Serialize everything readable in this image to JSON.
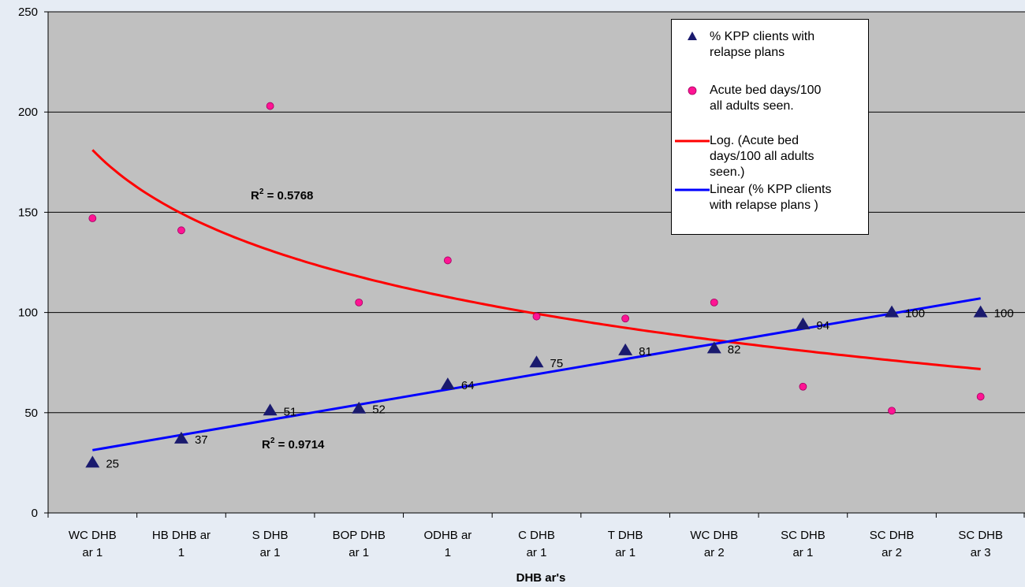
{
  "chart_data": {
    "type": "scatter",
    "title": "",
    "xlabel": "DHB ar's",
    "ylabel": "",
    "ylim": [
      0,
      250
    ],
    "yticks": [
      0,
      50,
      100,
      150,
      200,
      250
    ],
    "grid": true,
    "legend_position": "top-right",
    "categories": [
      "WC DHB\nar 1",
      "HB DHB ar\n1",
      "S DHB\nar 1",
      "BOP DHB\nar 1",
      "ODHB    ar\n1",
      "C DHB\nar 1",
      "T DHB\nar 1",
      "WC DHB\nar 2",
      "SC DHB\nar 1",
      "SC DHB\nar 2",
      "SC DHB\nar 3"
    ],
    "series": [
      {
        "name": "% KPP clients with relapse plans",
        "marker": "triangle",
        "color": "#1a1a6e",
        "values": [
          25,
          37,
          51,
          52,
          64,
          75,
          81,
          82,
          94,
          100,
          100
        ],
        "labels": [
          "25",
          "37",
          "51",
          "52",
          "64",
          "75",
          "81",
          "82",
          "94",
          "100",
          "100"
        ]
      },
      {
        "name": "Acute bed days/100 all adults seen.",
        "marker": "circle",
        "color": "#ff1493",
        "values": [
          147,
          141,
          203,
          105,
          126,
          98,
          97,
          105,
          63,
          51,
          58
        ]
      }
    ],
    "trendlines": [
      {
        "name": "Log. (Acute bed days/100 all adults seen.)",
        "type": "log",
        "color": "#ff0000",
        "r2": "R² = 0.5768",
        "r2_base": "R",
        "r2_sup": "2",
        "r2_value": " = 0.5768"
      },
      {
        "name": "Linear (% KPP clients with relapse plans )",
        "type": "linear",
        "color": "#0000ff",
        "r2": "R² = 0.9714",
        "r2_base": "R",
        "r2_sup": "2",
        "r2_value": " = 0.9714"
      }
    ]
  },
  "legend": {
    "items": [
      "% KPP clients with\nrelapse plans",
      "Acute bed days/100\nall adults seen.",
      "Log. (Acute bed\ndays/100 all adults\nseen.)",
      "Linear (% KPP clients\nwith relapse plans )"
    ]
  }
}
